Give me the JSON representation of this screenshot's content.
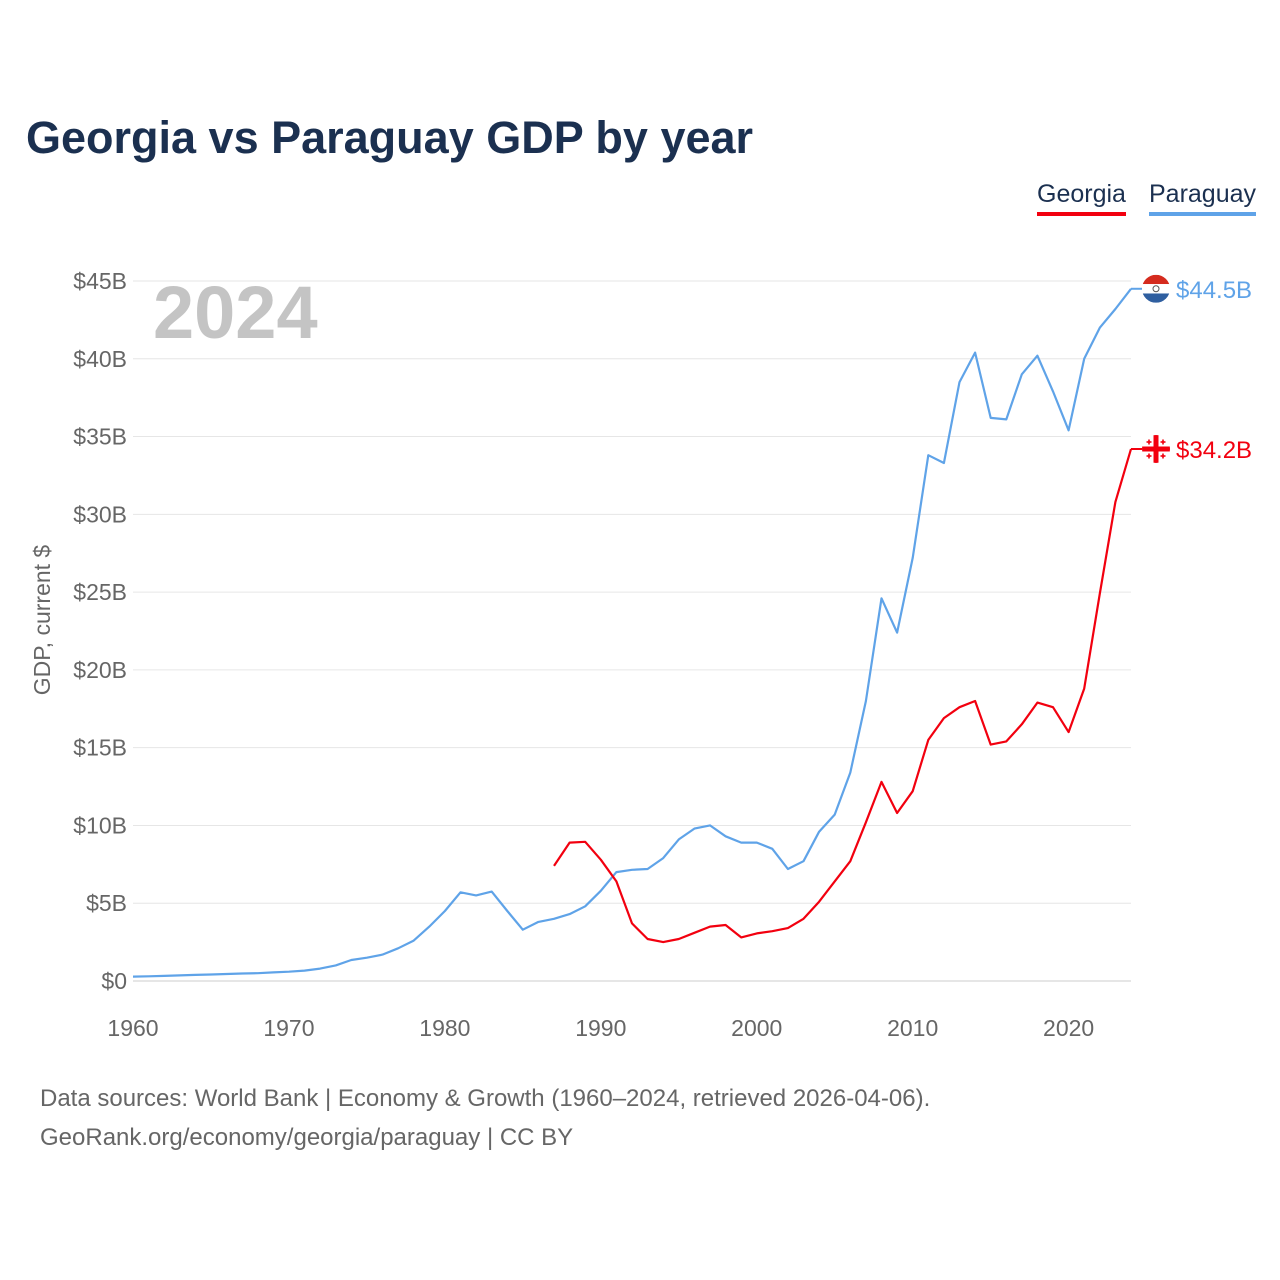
{
  "title": "Georgia vs Paraguay GDP by year",
  "legend": [
    {
      "name": "Georgia",
      "color": "#f2000f"
    },
    {
      "name": "Paraguay",
      "color": "#5fa3e8"
    }
  ],
  "footer": {
    "line1": "Data sources: World Bank | Economy & Growth (1960–2024, retrieved 2026-04-06).",
    "line2": "GeoRank.org/economy/georgia/paraguay | CC BY"
  },
  "chart_data": {
    "type": "line",
    "title": "Georgia vs Paraguay GDP by year",
    "year_label": "2024",
    "xlabel": "",
    "ylabel": "GDP, current $",
    "xlim": [
      1960,
      2024
    ],
    "ylim": [
      0,
      45
    ],
    "x_ticks": [
      1960,
      1970,
      1980,
      1990,
      2000,
      2010,
      2020
    ],
    "x_tick_labels": [
      "1960",
      "1970",
      "1980",
      "1990",
      "2000",
      "2010",
      "2020"
    ],
    "y_ticks": [
      0,
      5,
      10,
      15,
      20,
      25,
      30,
      35,
      40,
      45
    ],
    "y_tick_labels": [
      "$0",
      "$5B",
      "$10B",
      "$15B",
      "$20B",
      "$25B",
      "$30B",
      "$35B",
      "$40B",
      "$45B"
    ],
    "grid": true,
    "legend_position": "top-right",
    "units": "billions USD",
    "series": [
      {
        "name": "Paraguay",
        "color": "#5fa3e8",
        "end_label": "$44.5B",
        "start_year": 1960,
        "values": [
          0.28,
          0.3,
          0.33,
          0.36,
          0.39,
          0.42,
          0.45,
          0.48,
          0.5,
          0.55,
          0.6,
          0.67,
          0.8,
          1.0,
          1.35,
          1.5,
          1.7,
          2.1,
          2.6,
          3.5,
          4.5,
          5.7,
          5.5,
          5.75,
          4.5,
          3.3,
          3.8,
          4.0,
          4.3,
          4.8,
          5.8,
          7.0,
          7.15,
          7.2,
          7.9,
          9.1,
          9.8,
          10.0,
          9.3,
          8.9,
          8.9,
          8.5,
          7.2,
          7.7,
          9.6,
          10.7,
          13.4,
          18.0,
          24.6,
          22.4,
          27.2,
          33.8,
          33.3,
          38.5,
          40.4,
          36.2,
          36.1,
          39.0,
          40.2,
          37.9,
          35.4,
          40.0,
          42.0,
          43.2,
          44.5
        ]
      },
      {
        "name": "Georgia",
        "color": "#f2000f",
        "end_label": "$34.2B",
        "start_year": 1987,
        "values": [
          7.4,
          8.9,
          8.95,
          7.8,
          6.4,
          3.7,
          2.7,
          2.5,
          2.7,
          3.1,
          3.5,
          3.6,
          2.8,
          3.06,
          3.2,
          3.4,
          4.0,
          5.1,
          6.4,
          7.7,
          10.2,
          12.8,
          10.8,
          12.2,
          15.5,
          16.9,
          17.6,
          18.0,
          15.2,
          15.4,
          16.5,
          17.9,
          17.6,
          16.0,
          18.8,
          24.9,
          30.8,
          34.2
        ]
      }
    ]
  }
}
